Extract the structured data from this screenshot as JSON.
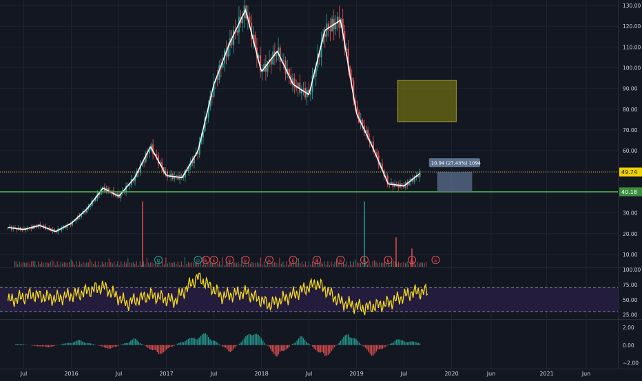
{
  "colors": {
    "background": "#131722",
    "grid": "#1f2330",
    "axis_text": "#d1d4dc",
    "price_line": "#ffffff",
    "candle_up": "#26a69a",
    "candle_down": "#ef5350",
    "support_line": "#4caf50",
    "current_price_line": "#e2c31c",
    "rsi_line": "#f7dc1e",
    "rsi_band": "#241c3d",
    "target_box": "#6b6b12",
    "measure_box": "#5c6f8d"
  },
  "chart_data": [
    {
      "type": "line",
      "panel": "price",
      "x_ticks": [
        "Jul",
        "2016",
        "Jul",
        "2017",
        "Jul",
        "2018",
        "Jul",
        "2019",
        "Jul",
        "2020",
        "Jun",
        "2021",
        "Jun"
      ],
      "y_ticks": [
        10,
        20,
        30,
        40,
        50,
        60,
        70,
        80,
        90,
        100,
        110,
        120,
        130
      ],
      "ylim": [
        4,
        132
      ],
      "x": [
        "2015-05",
        "2015-07",
        "2015-09",
        "2015-11",
        "2016-01",
        "2016-03",
        "2016-05",
        "2016-07",
        "2016-09",
        "2016-11",
        "2017-01",
        "2017-03",
        "2017-05",
        "2017-07",
        "2017-09",
        "2017-11",
        "2018-01",
        "2018-03",
        "2018-05",
        "2018-07",
        "2018-09",
        "2018-11",
        "2019-01",
        "2019-03",
        "2019-05",
        "2019-07",
        "2019-09"
      ],
      "series": [
        {
          "values": [
            23,
            22,
            24,
            21,
            25,
            32,
            42,
            38,
            47,
            62,
            48,
            47,
            60,
            92,
            112,
            128,
            98,
            108,
            92,
            87,
            118,
            123,
            78,
            62,
            44,
            43,
            49
          ]
        }
      ],
      "horizontal_lines": [
        {
          "value": 49.74,
          "label": "49.74"
        },
        {
          "value": 40.18,
          "label": "40.18"
        }
      ],
      "measure_annotation": "10.94 (27.43%) 1094",
      "target_box_range": [
        74,
        94
      ],
      "volume_spikes": [
        {
          "x": "2016-10",
          "value": 1.0
        },
        {
          "x": "2019-02",
          "value": 1.0
        },
        {
          "x": "2019-06",
          "value": 0.45
        },
        {
          "x": "2019-08",
          "value": 0.28
        }
      ],
      "event_markers": [
        {
          "x": "2016-12",
          "label": "D"
        },
        {
          "x": "2017-05",
          "label": "D"
        },
        {
          "x": "2017-06",
          "label": "E"
        },
        {
          "x": "2017-07",
          "label": "E"
        },
        {
          "x": "2017-09",
          "label": "E"
        },
        {
          "x": "2017-11",
          "label": "E"
        },
        {
          "x": "2018-02",
          "label": "E"
        },
        {
          "x": "2018-05",
          "label": "E"
        },
        {
          "x": "2018-08",
          "label": "E"
        },
        {
          "x": "2018-11",
          "label": "E"
        },
        {
          "x": "2019-02",
          "label": "E"
        },
        {
          "x": "2019-05",
          "label": "E"
        },
        {
          "x": "2019-08",
          "label": "E"
        },
        {
          "x": "2019-11",
          "label": "E"
        }
      ]
    },
    {
      "type": "line",
      "panel": "rsi",
      "y_ticks": [
        25,
        50,
        75,
        100
      ],
      "ylim": [
        20,
        100
      ],
      "band": [
        30,
        70
      ],
      "x": [
        "2015-05",
        "2015-08",
        "2015-11",
        "2016-02",
        "2016-05",
        "2016-08",
        "2016-11",
        "2017-02",
        "2017-05",
        "2017-08",
        "2017-11",
        "2018-02",
        "2018-05",
        "2018-08",
        "2018-11",
        "2019-02",
        "2019-05",
        "2019-08",
        "2019-10"
      ],
      "series": [
        {
          "values": [
            48,
            58,
            52,
            60,
            72,
            44,
            58,
            48,
            88,
            56,
            62,
            42,
            58,
            78,
            46,
            36,
            44,
            62,
            64
          ]
        }
      ]
    },
    {
      "type": "bar",
      "panel": "oscillator",
      "y_ticks": [
        -2.0,
        0.0,
        2.0
      ],
      "y_tick_labels": [
        "−2.00",
        "0.00",
        "2.00"
      ],
      "ylim": [
        -2.6,
        2.8
      ],
      "x": [
        "2015-06",
        "2015-10",
        "2016-02",
        "2016-06",
        "2016-09",
        "2016-12",
        "2017-03",
        "2017-06",
        "2017-09",
        "2017-12",
        "2018-03",
        "2018-06",
        "2018-09",
        "2018-12",
        "2019-03",
        "2019-06",
        "2019-09"
      ],
      "values": [
        0.2,
        -0.3,
        0.6,
        -0.5,
        0.8,
        -1.2,
        0.5,
        1.4,
        -0.9,
        1.9,
        -1.5,
        1.1,
        -1.6,
        1.6,
        -1.3,
        0.7,
        0.3
      ]
    }
  ]
}
